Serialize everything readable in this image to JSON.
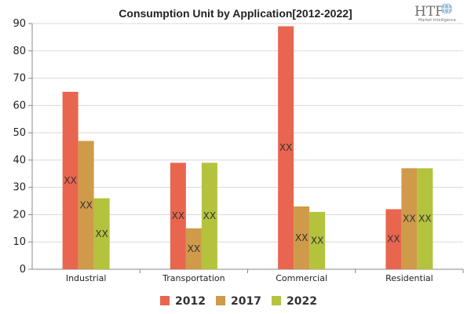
{
  "chart_data": {
    "type": "bar",
    "title": "Consumption Unit by  Application[2012-2022]",
    "categories": [
      "Industrial",
      "Transportation",
      "Commercial",
      "Residential"
    ],
    "series": [
      {
        "name": "2012",
        "values": [
          65,
          39,
          89,
          22
        ],
        "color": "#e8664f"
      },
      {
        "name": "2017",
        "values": [
          47,
          15,
          23,
          37
        ],
        "color": "#cf9a4a"
      },
      {
        "name": "2022",
        "values": [
          26,
          39,
          21,
          37
        ],
        "color": "#b5c23d"
      }
    ],
    "data_label": "XX",
    "ylim": [
      0,
      90
    ],
    "yticks": [
      0,
      10,
      20,
      30,
      40,
      50,
      60,
      70,
      80,
      90
    ],
    "grid": true,
    "legend_position": "bottom"
  },
  "logo": {
    "main": "HTF",
    "sub": "Market Intelligence",
    "icon": "globe-icon"
  }
}
